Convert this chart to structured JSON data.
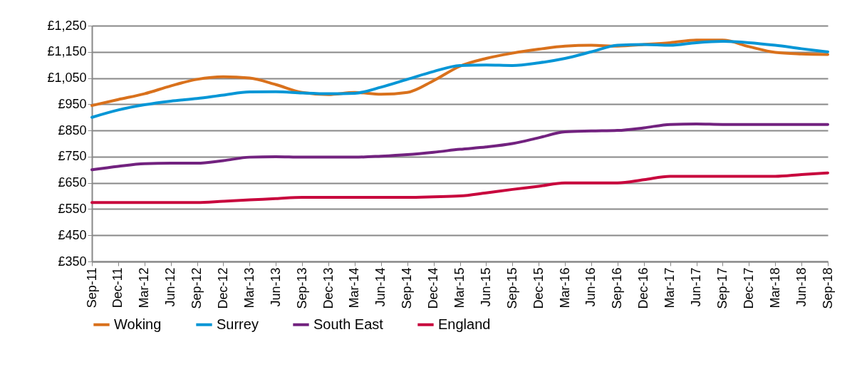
{
  "chart_data": {
    "type": "line",
    "categories": [
      "Sep-11",
      "Dec-11",
      "Mar-12",
      "Jun-12",
      "Sep-12",
      "Dec-12",
      "Mar-13",
      "Jun-13",
      "Sep-13",
      "Dec-13",
      "Mar-14",
      "Jun-14",
      "Sep-14",
      "Dec-14",
      "Mar-15",
      "Jun-15",
      "Sep-15",
      "Dec-15",
      "Mar-16",
      "Jun-16",
      "Sep-16",
      "Dec-16",
      "Mar-17",
      "Jun-17",
      "Sep-17",
      "Dec-17",
      "Mar-18",
      "Jun-18",
      "Sep-18"
    ],
    "series": [
      {
        "name": "Woking",
        "color": "#d9711c",
        "values": [
          945,
          968,
          990,
          1020,
          1045,
          1055,
          1050,
          1025,
          995,
          987,
          995,
          988,
          995,
          1040,
          1095,
          1125,
          1145,
          1160,
          1172,
          1175,
          1172,
          1178,
          1185,
          1195,
          1195,
          1170,
          1148,
          1142,
          1140
        ]
      },
      {
        "name": "Surrey",
        "color": "#0596d6",
        "values": [
          900,
          928,
          948,
          962,
          972,
          985,
          997,
          998,
          993,
          990,
          992,
          1015,
          1045,
          1075,
          1098,
          1100,
          1098,
          1108,
          1125,
          1150,
          1175,
          1178,
          1175,
          1185,
          1190,
          1185,
          1175,
          1162,
          1150
        ]
      },
      {
        "name": "South East",
        "color": "#72227f",
        "values": [
          700,
          713,
          723,
          725,
          725,
          735,
          748,
          750,
          748,
          748,
          748,
          752,
          758,
          767,
          778,
          787,
          800,
          822,
          845,
          848,
          850,
          860,
          873,
          875,
          873,
          873,
          873,
          873,
          873
        ]
      },
      {
        "name": "England",
        "color": "#c8053d",
        "values": [
          575,
          575,
          575,
          575,
          575,
          580,
          585,
          590,
          595,
          595,
          595,
          595,
          595,
          597,
          600,
          612,
          625,
          637,
          650,
          650,
          650,
          662,
          675,
          675,
          675,
          675,
          675,
          682,
          688
        ]
      }
    ],
    "ylim": [
      350,
      1250
    ],
    "yticks": [
      {
        "value": 350,
        "label": "£350"
      },
      {
        "value": 450,
        "label": "£450"
      },
      {
        "value": 550,
        "label": "£550"
      },
      {
        "value": 650,
        "label": "£650"
      },
      {
        "value": 750,
        "label": "£750"
      },
      {
        "value": 850,
        "label": "£850"
      },
      {
        "value": 950,
        "label": "£950"
      },
      {
        "value": 1050,
        "label": "£1,050"
      },
      {
        "value": 1150,
        "label": "£1,150"
      },
      {
        "value": 1250,
        "label": "£1,250"
      }
    ],
    "grid": "y",
    "legend": "bottom",
    "marker": "none",
    "line_style": "solid"
  }
}
